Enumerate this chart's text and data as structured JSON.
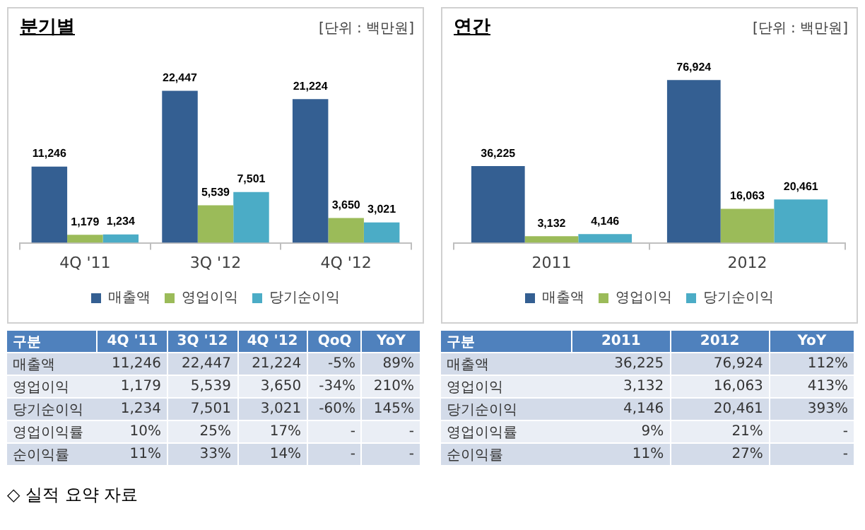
{
  "chart_data": [
    {
      "type": "bar",
      "title": "분기별",
      "subtitle": "[단위 : 백만원]",
      "categories": [
        "4Q '11",
        "3Q '12",
        "4Q '12"
      ],
      "legend": "bottom",
      "series": [
        {
          "name": "매출액",
          "color": "#345f92",
          "values": [
            11246,
            22447,
            21224
          ],
          "value_labels": [
            "11,246",
            "22,447",
            "21,224"
          ]
        },
        {
          "name": "영업이익",
          "color": "#9bbb59",
          "values": [
            1179,
            5539,
            3650
          ],
          "value_labels": [
            "1,179",
            "5,539",
            "3,650"
          ]
        },
        {
          "name": "당기순이익",
          "color": "#4bacc6",
          "values": [
            1234,
            7501,
            3021
          ],
          "value_labels": [
            "1,234",
            "7,501",
            "3,021"
          ]
        }
      ]
    },
    {
      "type": "bar",
      "title": "연간",
      "subtitle": "[단위 : 백만원]",
      "categories": [
        "2011",
        "2012"
      ],
      "legend": "bottom",
      "series": [
        {
          "name": "매출액",
          "color": "#345f92",
          "values": [
            36225,
            76924
          ],
          "value_labels": [
            "36,225",
            "76,924"
          ]
        },
        {
          "name": "영업이익",
          "color": "#9bbb59",
          "values": [
            3132,
            16063
          ],
          "value_labels": [
            "3,132",
            "16,063"
          ]
        },
        {
          "name": "당기순이익",
          "color": "#4bacc6",
          "values": [
            4146,
            20461
          ],
          "value_labels": [
            "4,146",
            "20,461"
          ]
        }
      ]
    },
    {
      "type": "other",
      "ylabel": "구분",
      "categories": [
        "4Q '11",
        "3Q '12",
        "4Q '12",
        "QoQ",
        "YoY"
      ],
      "y_categories": [
        "매출액",
        "영업이익",
        "당기순이익",
        "영업이익률",
        "순이익률"
      ],
      "cell_labels": [
        [
          "11,246",
          "22,447",
          "21,224",
          "-5%",
          "89%"
        ],
        [
          "1,179",
          "5,539",
          "3,650",
          "-34%",
          "210%"
        ],
        [
          "1,234",
          "7,501",
          "3,021",
          "-60%",
          "145%"
        ],
        [
          "10%",
          "25%",
          "17%",
          "-",
          "-"
        ],
        [
          "11%",
          "33%",
          "14%",
          "-",
          "-"
        ]
      ],
      "annotations": [
        "◇ 실적 요약 자료"
      ]
    },
    {
      "type": "other",
      "ylabel": "구분",
      "categories": [
        "2011",
        "2012",
        "YoY"
      ],
      "y_categories": [
        "매출액",
        "영업이익",
        "당기순이익",
        "영업이익률",
        "순이익률"
      ],
      "cell_labels": [
        [
          "36,225",
          "76,924",
          "112%"
        ],
        [
          "3,132",
          "16,063",
          "413%"
        ],
        [
          "4,146",
          "20,461",
          "393%"
        ],
        [
          "9%",
          "21%",
          "-"
        ],
        [
          "11%",
          "27%",
          "-"
        ]
      ]
    }
  ]
}
